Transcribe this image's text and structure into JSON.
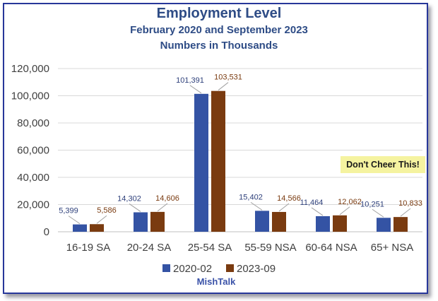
{
  "chart_data": {
    "type": "bar",
    "title": "Employment Level",
    "subtitle_lines": [
      "February 2020 and September 2023",
      "Numbers in Thousands"
    ],
    "categories": [
      "16-19 SA",
      "20-24 SA",
      "25-54 SA",
      "55-59 NSA",
      "60-64 NSA",
      "65+ NSA"
    ],
    "series": [
      {
        "name": "2020-02",
        "color": "#3453a4",
        "values": [
          5399,
          14302,
          101391,
          15402,
          11464,
          10251
        ],
        "labels": [
          "5,399",
          "14,302",
          "101,391",
          "15,402",
          "11,464",
          "10,251"
        ]
      },
      {
        "name": "2023-09",
        "color": "#7a3b10",
        "values": [
          5586,
          14606,
          103531,
          14566,
          12062,
          10833
        ],
        "labels": [
          "5,586",
          "14,606",
          "103,531",
          "14,566",
          "12,062",
          "10,833"
        ]
      }
    ],
    "ylim": [
      0,
      120000
    ],
    "yticks": [
      0,
      20000,
      40000,
      60000,
      80000,
      100000,
      120000
    ],
    "ytick_labels": [
      "0",
      "20,000",
      "40,000",
      "60,000",
      "80,000",
      "100,000",
      "120,000"
    ],
    "grid": true,
    "legend_position": "bottom",
    "annotation": "Don't Cheer This!",
    "source": "MishTalk"
  }
}
